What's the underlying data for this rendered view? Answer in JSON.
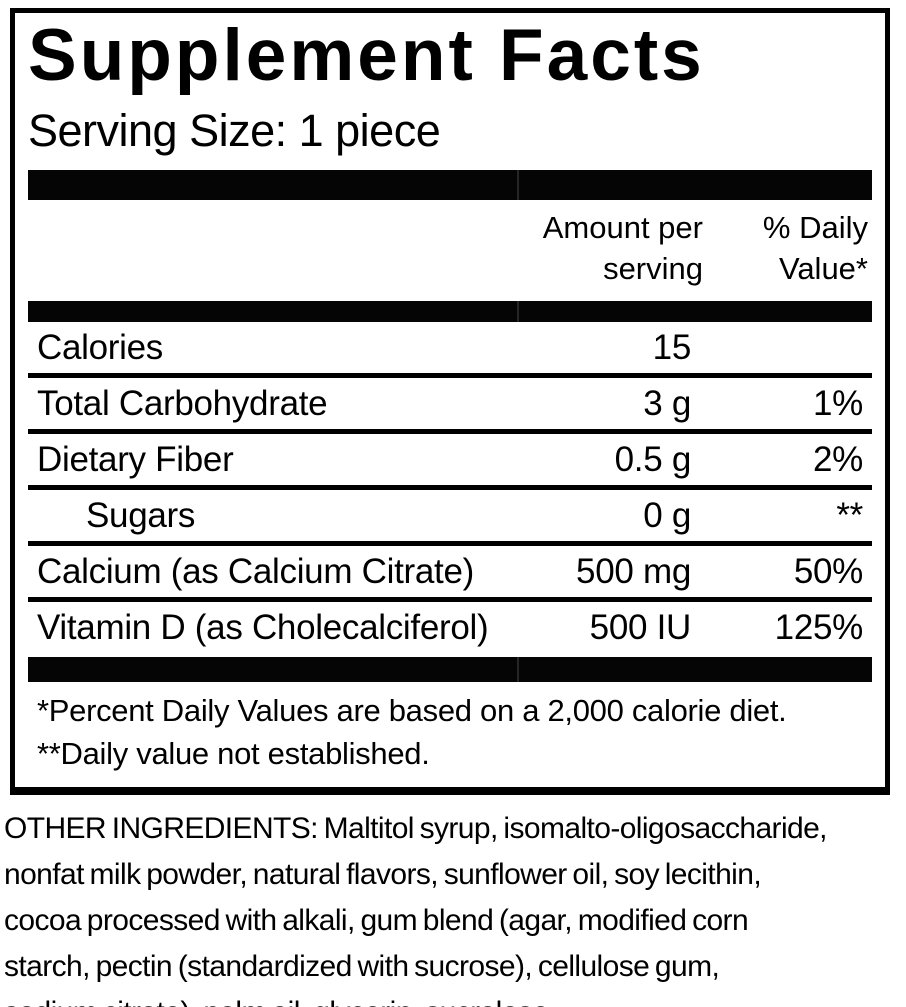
{
  "label": {
    "title": "Supplement Facts",
    "serving_size": "Serving Size: 1 piece",
    "columns": {
      "amount_header": [
        "Amount per",
        "serving"
      ],
      "dv_header": [
        "% Daily",
        "Value*"
      ]
    },
    "rows": [
      {
        "name": "Calories",
        "amount": "15",
        "dv": ""
      },
      {
        "name": "Total Carbohydrate",
        "amount": "3 g",
        "dv": "1%"
      },
      {
        "name": "Dietary Fiber",
        "amount": "0.5 g",
        "dv": "2%"
      },
      {
        "name": "Sugars",
        "amount": "0 g",
        "dv": "**"
      },
      {
        "name": "Calcium (as Calcium Citrate)",
        "amount": "500 mg",
        "dv": "50%"
      },
      {
        "name": "Vitamin D (as Cholecalciferol)",
        "amount": "500 IU",
        "dv": "125%"
      }
    ],
    "footnotes": [
      "*Percent Daily Values are based on a 2,000 calorie diet.",
      "**Daily value not established."
    ]
  },
  "other_ingredients": {
    "full_text": "OTHER INGREDIENTS: Maltitol syrup, isomalto-oligosaccharide, nonfat milk powder, natural flavors, sunflower oil, soy lecithin, cocoa processed with alkali, gum blend (agar, modified corn starch, pectin (standardized with sucrose), cellulose gum, sodium citrate), palm oil, glycerin, sucralose.",
    "lines": [
      "OTHER INGREDIENTS: Maltitol syrup, isomalto-oligosaccharide,",
      "nonfat milk powder, natural flavors, sunflower oil, soy lecithin,",
      "cocoa processed with alkali, gum blend (agar, modified corn",
      "starch, pectin (standardized with sucrose), cellulose gum,",
      "sodium citrate), palm oil, glycerin, sucralose."
    ]
  },
  "colors": {
    "ink": "#000000",
    "background": "#ffffff"
  }
}
